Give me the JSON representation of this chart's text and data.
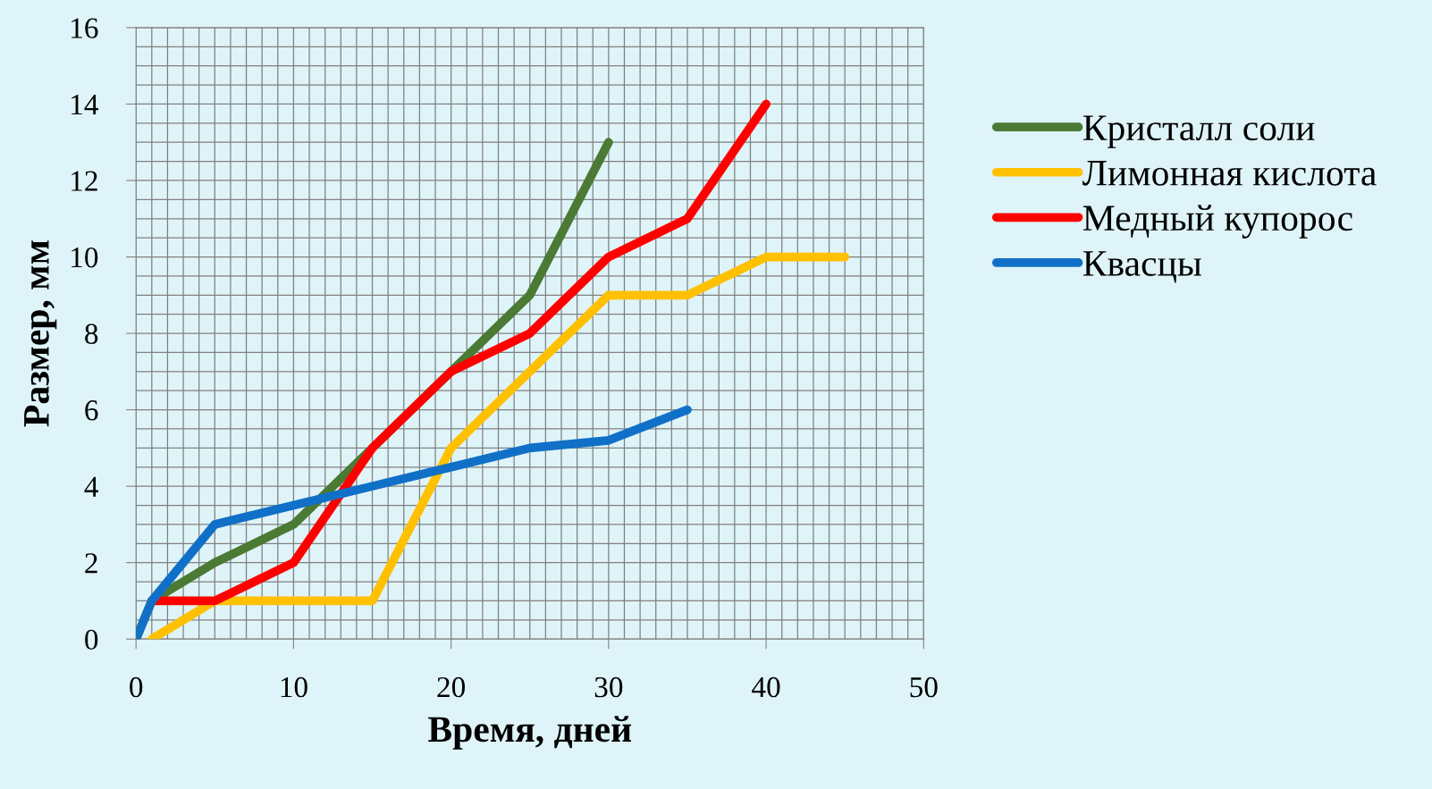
{
  "chart_data": {
    "type": "line",
    "xlabel": "Время, дней",
    "ylabel": "Размер, мм",
    "xlim": [
      0,
      50
    ],
    "xticks": [
      0,
      10,
      20,
      30,
      40,
      50
    ],
    "ylim": [
      0,
      16
    ],
    "yticks": [
      0,
      2,
      4,
      6,
      8,
      10,
      12,
      14,
      16
    ],
    "grid": true,
    "legend": "right",
    "marker": "none",
    "line_style": "solid",
    "series": [
      {
        "name": "Кристалл соли",
        "color": "#4a7a34",
        "x": [
          0,
          1,
          5,
          10,
          15,
          20,
          25,
          30
        ],
        "values": [
          0,
          1,
          2,
          3,
          5,
          7,
          9,
          13
        ]
      },
      {
        "name": "Лимонная кислота",
        "color": "#ffc000",
        "x": [
          1,
          5,
          10,
          15,
          20,
          25,
          30,
          35,
          40,
          45
        ],
        "values": [
          0,
          1,
          1,
          1,
          5,
          7,
          9,
          9,
          10,
          10
        ]
      },
      {
        "name": "Медный купорос",
        "color": "#ff0000",
        "x": [
          1,
          5,
          10,
          15,
          20,
          25,
          30,
          35,
          40
        ],
        "values": [
          1,
          1,
          2,
          5,
          7,
          8,
          10,
          11,
          14
        ]
      },
      {
        "name": "Квасцы",
        "color": "#1070c8",
        "x": [
          0,
          1,
          5,
          10,
          15,
          20,
          25,
          30,
          35
        ],
        "values": [
          0,
          1,
          3,
          3.5,
          4,
          4.5,
          5,
          5.2,
          6
        ]
      }
    ]
  }
}
